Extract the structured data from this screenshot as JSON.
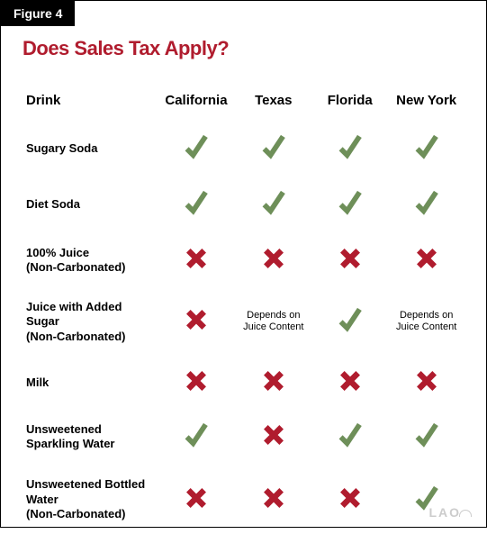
{
  "figureLabel": "Figure 4",
  "title": "Does Sales Tax Apply?",
  "drinkHeader": "Drink",
  "states": [
    "California",
    "Texas",
    "Florida",
    "New York"
  ],
  "dependsText": "Depends on Juice Content",
  "colors": {
    "check": "#6e8f59",
    "x": "#b01c2e",
    "title": "#b01c2e",
    "labelBg": "#000000",
    "labelText": "#ffffff",
    "logo": "#cccccc"
  },
  "rows": [
    {
      "drink": "Sugary Soda",
      "cells": [
        "check",
        "check",
        "check",
        "check"
      ]
    },
    {
      "drink": "Diet Soda",
      "cells": [
        "check",
        "check",
        "check",
        "check"
      ]
    },
    {
      "drink": "100% Juice\n(Non-Carbonated)",
      "cells": [
        "x",
        "x",
        "x",
        "x"
      ]
    },
    {
      "drink": "Juice with Added Sugar\n(Non-Carbonated)",
      "cells": [
        "x",
        "depends",
        "check",
        "depends"
      ]
    },
    {
      "drink": "Milk",
      "cells": [
        "x",
        "x",
        "x",
        "x"
      ]
    },
    {
      "drink": "Unsweetened\nSparkling Water",
      "cells": [
        "check",
        "x",
        "check",
        "check"
      ]
    },
    {
      "drink": "Unsweetened Bottled Water\n(Non-Carbonated)",
      "cells": [
        "x",
        "x",
        "x",
        "check"
      ]
    }
  ],
  "footerLogo": "LAO"
}
